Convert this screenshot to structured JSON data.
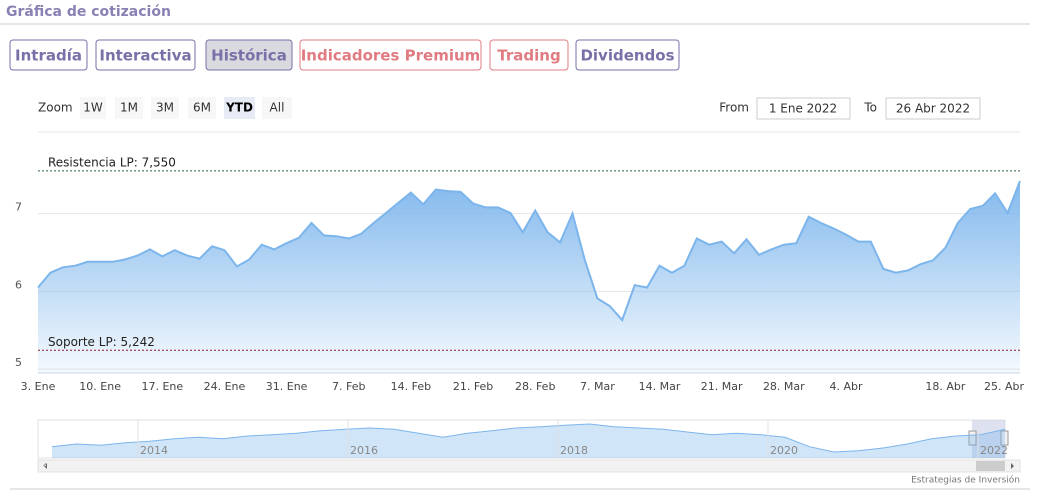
{
  "header": {
    "title": "Gráfica de cotización"
  },
  "tabs": {
    "active": 2,
    "items": [
      {
        "label": "Intradía",
        "color": "#7a70a8"
      },
      {
        "label": "Interactiva",
        "color": "#7a70a8"
      },
      {
        "label": "Histórica",
        "color": "#7a70a8"
      },
      {
        "label": "Indicadores Premium",
        "color": "#e07b82"
      },
      {
        "label": "Trading",
        "color": "#e07b82"
      },
      {
        "label": "Dividendos",
        "color": "#7a70a8"
      }
    ]
  },
  "zoom": {
    "label": "Zoom",
    "buttons": [
      "1W",
      "1M",
      "3M",
      "6M",
      "YTD",
      "All"
    ],
    "active": 4
  },
  "range": {
    "from_label": "From",
    "from": "1 Ene 2022",
    "to_label": "To",
    "to": "26 Abr 2022"
  },
  "chart_data": {
    "type": "area",
    "color": "#7cb5ec",
    "categories": [
      "3. Ene",
      null,
      null,
      null,
      null,
      "10. Ene",
      null,
      null,
      null,
      null,
      "17. Ene",
      null,
      null,
      null,
      null,
      "24. Ene",
      null,
      null,
      null,
      null,
      "31. Ene",
      null,
      null,
      null,
      null,
      "7. Feb",
      null,
      null,
      null,
      null,
      "14. Feb",
      null,
      null,
      null,
      null,
      "21. Feb",
      null,
      null,
      null,
      null,
      "28. Feb",
      null,
      null,
      null,
      null,
      "7. Mar",
      null,
      null,
      null,
      null,
      "14. Mar",
      null,
      null,
      null,
      null,
      "21. Mar",
      null,
      null,
      null,
      null,
      "28. Mar",
      null,
      null,
      null,
      null,
      "4. Abr",
      null,
      null,
      null,
      null,
      null,
      null,
      null,
      "18. Abr",
      null,
      null,
      null,
      null,
      "25. Abr",
      null
    ],
    "values": [
      6.05,
      6.24,
      6.31,
      6.33,
      6.38,
      6.38,
      6.38,
      6.41,
      6.46,
      6.54,
      6.45,
      6.53,
      6.46,
      6.42,
      6.58,
      6.53,
      6.32,
      6.41,
      6.6,
      6.54,
      6.62,
      6.69,
      6.88,
      6.72,
      6.71,
      6.68,
      6.74,
      6.88,
      7.01,
      7.14,
      7.27,
      7.12,
      7.31,
      7.29,
      7.28,
      7.13,
      7.08,
      7.08,
      7.01,
      6.76,
      7.04,
      6.76,
      6.63,
      7.0,
      6.4,
      5.91,
      5.81,
      5.63,
      6.08,
      6.05,
      6.33,
      6.24,
      6.33,
      6.68,
      6.6,
      6.64,
      6.49,
      6.67,
      6.47,
      6.54,
      6.6,
      6.62,
      6.96,
      6.88,
      6.81,
      6.73,
      6.64,
      6.64,
      6.29,
      6.24,
      6.27,
      6.35,
      6.4,
      6.56,
      6.88,
      7.06,
      7.1,
      7.26,
      7.01,
      7.42
    ],
    "ylim": [
      4.95,
      8.05
    ],
    "yticks": [
      5,
      6,
      7
    ],
    "grid": true,
    "reference_lines": [
      {
        "value": 7.55,
        "label": "Resistencia LP: 7,550",
        "color": "#2e6b3a"
      },
      {
        "value": 5.242,
        "label": "Soporte LP: 5,242",
        "color": "#8b1a2b"
      }
    ]
  },
  "navigator": {
    "labels": [
      "2014",
      "2016",
      "2018",
      "2020",
      "2022"
    ],
    "values": [
      5.6,
      5.8,
      5.7,
      5.9,
      6.0,
      6.2,
      6.3,
      6.2,
      6.4,
      6.5,
      6.6,
      6.8,
      6.9,
      7.0,
      6.9,
      6.6,
      6.3,
      6.6,
      6.8,
      7.0,
      7.1,
      7.2,
      7.3,
      7.1,
      7.0,
      6.9,
      6.7,
      6.5,
      6.6,
      6.5,
      6.3,
      5.6,
      5.2,
      5.3,
      5.5,
      5.8,
      6.2,
      6.4,
      6.5,
      6.9
    ]
  },
  "credit": "Estrategias de Inversión"
}
